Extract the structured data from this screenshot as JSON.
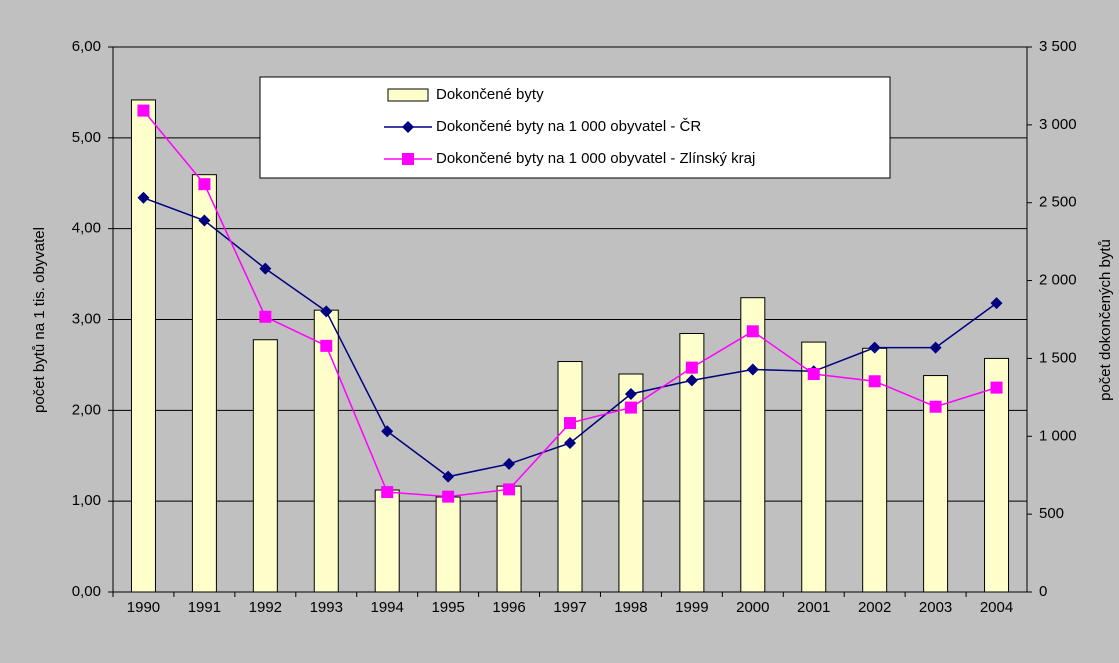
{
  "chart_data": {
    "type": "bar",
    "categories": [
      "1990",
      "1991",
      "1992",
      "1993",
      "1994",
      "1995",
      "1996",
      "1997",
      "1998",
      "1999",
      "2000",
      "2001",
      "2002",
      "2003",
      "2004"
    ],
    "ylabel": "počet bytů na 1 tis. obyvatel",
    "y2label": "počet dokončených bytů",
    "ylim": [
      0,
      6
    ],
    "yticks": [
      {
        "value": 0,
        "label": "0,00"
      },
      {
        "value": 1,
        "label": "1,00"
      },
      {
        "value": 2,
        "label": "2,00"
      },
      {
        "value": 3,
        "label": "3,00"
      },
      {
        "value": 4,
        "label": "4,00"
      },
      {
        "value": 5,
        "label": "5,00"
      },
      {
        "value": 6,
        "label": "6,00"
      }
    ],
    "y2lim": [
      0,
      3500
    ],
    "y2ticks": [
      0,
      500,
      {
        "value": 1000,
        "label": "1 000"
      },
      {
        "value": 1500,
        "label": "1 500"
      },
      {
        "value": 2000,
        "label": "2 000"
      },
      {
        "value": 2500,
        "label": "2 500"
      },
      {
        "value": 3000,
        "label": "3 000"
      },
      {
        "value": 3500,
        "label": "3 500"
      }
    ],
    "grid": true,
    "legend": "top",
    "series": [
      {
        "name": "Dokončené byty",
        "type": "bar",
        "axis": "y2",
        "color": "#ffffcc",
        "values": [
          3160,
          2680,
          1620,
          1810,
          655,
          610,
          680,
          1480,
          1400,
          1660,
          1890,
          1605,
          1565,
          1390,
          1500
        ]
      },
      {
        "name": "Dokončené byty na 1 000 obyvatel - ČR",
        "type": "line",
        "marker": "diamond",
        "color": "#000080",
        "values": [
          4.34,
          4.09,
          3.56,
          3.09,
          1.77,
          1.27,
          1.41,
          1.64,
          2.18,
          2.33,
          2.45,
          2.43,
          2.69,
          2.69,
          3.18
        ]
      },
      {
        "name": "Dokončené byty na 1 000 obyvatel - Zlínský kraj",
        "type": "line",
        "marker": "square",
        "color": "#ff00ff",
        "values": [
          5.3,
          4.49,
          3.03,
          2.71,
          1.1,
          1.05,
          1.13,
          1.86,
          2.03,
          2.47,
          2.87,
          2.4,
          2.32,
          2.04,
          2.25
        ]
      }
    ]
  }
}
